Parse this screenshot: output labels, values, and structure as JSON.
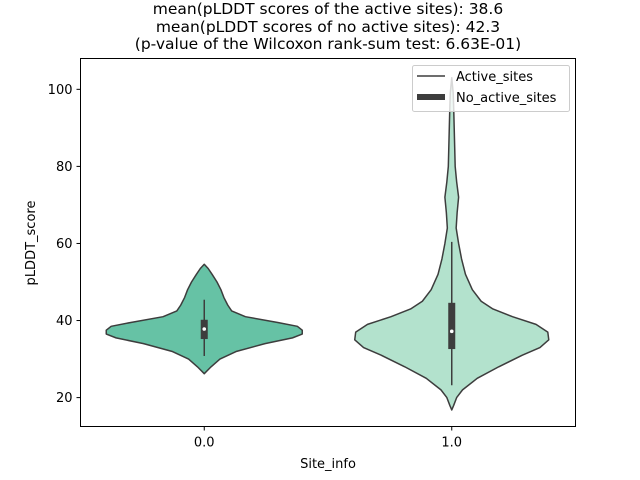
{
  "chart_data": {
    "type": "violin",
    "title_lines": [
      "mean(pLDDT scores of the active sites): 38.6",
      "mean(pLDDT scores of no active sites): 42.3",
      "(p-value of the Wilcoxon rank-sum test: 6.63E-01)"
    ],
    "xlabel": "Site_info",
    "ylabel": "pLDDT_score",
    "categories": [
      "0.0",
      "1.0"
    ],
    "ylim": [
      12.5,
      108.0
    ],
    "yticks": [
      20,
      40,
      60,
      80,
      100
    ],
    "grid": false,
    "legend": {
      "position": "top-right",
      "entries": [
        {
          "label": "Active_sites",
          "style": "thin-line"
        },
        {
          "label": "No_active_sites",
          "style": "thick-line"
        }
      ]
    },
    "series": [
      {
        "category": "0.0",
        "color": "#66c2a5",
        "min": 26.2,
        "max": 54.6,
        "q1": 35.2,
        "median": 37.8,
        "q3": 40.2,
        "whisker_low": 30.8,
        "whisker_high": 45.4,
        "density": [
          [
            26.2,
            0.0
          ],
          [
            28.0,
            0.07
          ],
          [
            30.0,
            0.16
          ],
          [
            32.0,
            0.33
          ],
          [
            34.0,
            0.62
          ],
          [
            35.5,
            0.9
          ],
          [
            36.5,
            1.0
          ],
          [
            37.5,
            1.0
          ],
          [
            38.5,
            0.95
          ],
          [
            39.5,
            0.75
          ],
          [
            41.0,
            0.42
          ],
          [
            42.5,
            0.28
          ],
          [
            44.0,
            0.24
          ],
          [
            46.0,
            0.2
          ],
          [
            48.0,
            0.17
          ],
          [
            50.0,
            0.13
          ],
          [
            52.0,
            0.08
          ],
          [
            53.5,
            0.04
          ],
          [
            54.6,
            0.0
          ]
        ]
      },
      {
        "category": "1.0",
        "color": "#b3e2cd",
        "min": 16.8,
        "max": 103.0,
        "q1": 32.6,
        "median": 37.2,
        "q3": 44.6,
        "whisker_low": 23.2,
        "whisker_high": 60.4,
        "density": [
          [
            16.8,
            0.0
          ],
          [
            18.0,
            0.02
          ],
          [
            20.0,
            0.05
          ],
          [
            22.0,
            0.11
          ],
          [
            25.0,
            0.26
          ],
          [
            28.0,
            0.48
          ],
          [
            31.0,
            0.72
          ],
          [
            33.0,
            0.9
          ],
          [
            35.0,
            0.99
          ],
          [
            37.0,
            0.98
          ],
          [
            39.0,
            0.86
          ],
          [
            41.0,
            0.62
          ],
          [
            43.0,
            0.42
          ],
          [
            45.0,
            0.3
          ],
          [
            48.0,
            0.21
          ],
          [
            52.0,
            0.14
          ],
          [
            56.0,
            0.1
          ],
          [
            60.0,
            0.07
          ],
          [
            64.0,
            0.045
          ],
          [
            68.0,
            0.055
          ],
          [
            72.0,
            0.07
          ],
          [
            76.0,
            0.05
          ],
          [
            80.0,
            0.035
          ],
          [
            85.0,
            0.03
          ],
          [
            90.0,
            0.025
          ],
          [
            95.0,
            0.02
          ],
          [
            99.0,
            0.015
          ],
          [
            103.0,
            0.0
          ]
        ]
      }
    ]
  }
}
